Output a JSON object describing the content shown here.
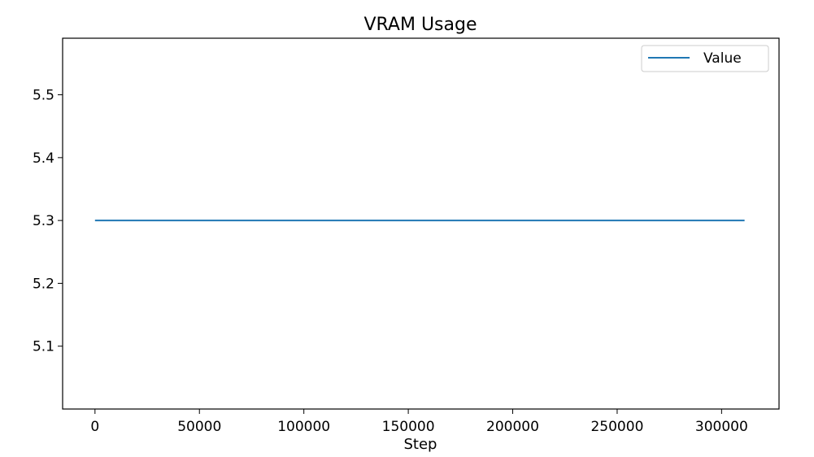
{
  "chart_data": {
    "type": "line",
    "title": "VRAM Usage",
    "xlabel": "Step",
    "ylabel": "",
    "xlim": [
      -15500,
      327500
    ],
    "ylim": [
      5.0,
      5.59
    ],
    "xticks": [
      0,
      50000,
      100000,
      150000,
      200000,
      250000,
      300000
    ],
    "xtick_labels": [
      "0",
      "50000",
      "100000",
      "150000",
      "200000",
      "250000",
      "300000"
    ],
    "yticks": [
      5.1,
      5.2,
      5.3,
      5.4,
      5.5
    ],
    "ytick_labels": [
      "5.1",
      "5.2",
      "5.3",
      "5.4",
      "5.5"
    ],
    "grid": false,
    "legend_position": "top-right",
    "series": [
      {
        "name": "Value",
        "color": "#1f77b4",
        "x": [
          0,
          311000
        ],
        "y": [
          5.3,
          5.3
        ]
      }
    ]
  }
}
